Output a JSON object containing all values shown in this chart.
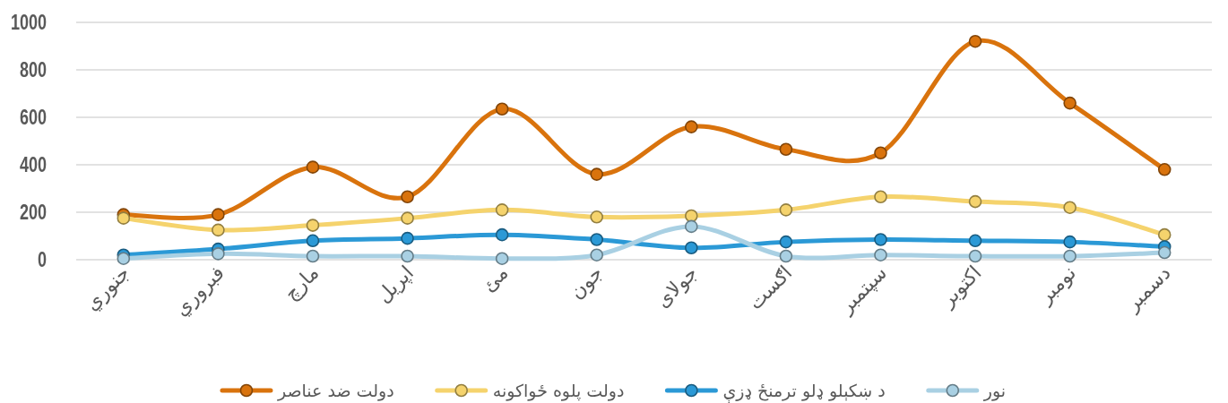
{
  "chart_data": {
    "type": "line",
    "categories": [
      "جنوري",
      "فبروري",
      "مارچ",
      "اپریل",
      "مئ",
      "جون",
      "جولای",
      "اګست",
      "سپتمبر",
      "اکتوبر",
      "نومبر",
      "دسمبر"
    ],
    "ylim": [
      0,
      1000
    ],
    "yticks": [
      0,
      200,
      400,
      600,
      800,
      1000
    ],
    "grid": "y",
    "legend": "bottom",
    "marker": "circle",
    "line_style": "solid",
    "series": [
      {
        "name": "دولت ضد عناصر",
        "color": "#d9730d",
        "values": [
          190,
          190,
          390,
          265,
          635,
          360,
          560,
          465,
          450,
          920,
          660,
          380
        ]
      },
      {
        "name": "دولت پلوه ځواکونه",
        "color": "#f5d36d",
        "values": [
          175,
          125,
          145,
          175,
          210,
          180,
          185,
          210,
          265,
          245,
          220,
          105
        ]
      },
      {
        "name": "د ښکېلو ډلو ترمنځ ډزې",
        "color": "#2b99d6",
        "values": [
          20,
          45,
          80,
          90,
          105,
          85,
          50,
          75,
          85,
          80,
          75,
          55
        ]
      },
      {
        "name": "نور",
        "color": "#a9d0e3",
        "values": [
          5,
          25,
          15,
          15,
          5,
          20,
          140,
          15,
          20,
          15,
          15,
          30
        ]
      }
    ]
  }
}
